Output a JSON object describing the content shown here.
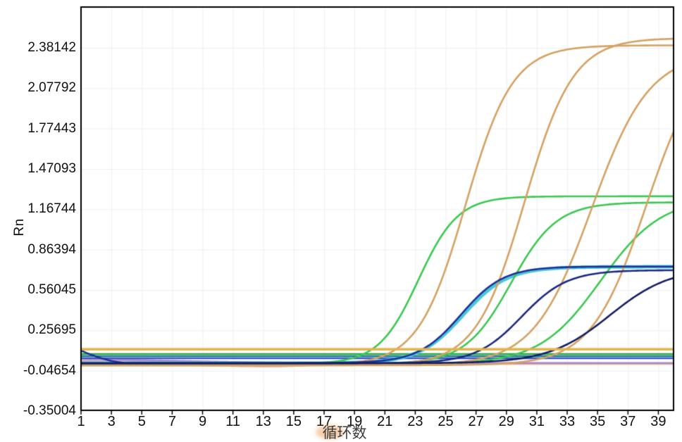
{
  "page": {
    "background_color": "#ffffff",
    "description_visible_text_only": "Real-time PCR amplification plot, Rn versus cycle number"
  },
  "chart_data": {
    "type": "line",
    "title": "",
    "xlabel": "循环数",
    "ylabel": "Rn",
    "x_ticks": [
      1,
      3,
      5,
      7,
      9,
      11,
      13,
      15,
      17,
      19,
      21,
      23,
      25,
      27,
      29,
      31,
      33,
      35,
      37,
      39
    ],
    "y_ticks": [
      2.38142,
      2.07792,
      1.77443,
      1.47093,
      1.16744,
      0.86394,
      0.56045,
      0.25695,
      -0.04654,
      -0.35004
    ],
    "x_range": [
      1,
      40
    ],
    "ylim": [
      -0.35004,
      2.69
    ],
    "grid": true,
    "legend_position": "none",
    "axis_color": "#000000",
    "grid_color": "#edeff4",
    "threshold_line": {
      "name": "threshold-line",
      "value": 0.115,
      "color": "#e2b44d",
      "width": 3.5
    },
    "series": [
      {
        "name": "negative-baseline-salmon",
        "color": "#eca47f",
        "width": 3,
        "model": "polyline",
        "points": [
          [
            1,
            0.018
          ],
          [
            4,
            0.012
          ],
          [
            7,
            0.002
          ],
          [
            9,
            -0.005
          ],
          [
            12,
            -0.011
          ],
          [
            14,
            -0.012
          ],
          [
            15.5,
            -0.007
          ],
          [
            17,
            0.002
          ],
          [
            19,
            0.007
          ],
          [
            40,
            0.007
          ]
        ]
      },
      {
        "name": "negative-baseline-pink",
        "color": "#d79fb6",
        "width": 2,
        "model": "polyline",
        "points": [
          [
            1,
            0.031
          ],
          [
            5,
            0.026
          ],
          [
            9,
            0.02
          ],
          [
            13,
            0.015
          ],
          [
            17,
            0.012
          ],
          [
            40,
            0.011
          ]
        ]
      },
      {
        "name": "negative-baseline-purple",
        "color": "#a48bd0",
        "width": 2.5,
        "model": "polyline",
        "points": [
          [
            1,
            0.045
          ],
          [
            3,
            0.04
          ],
          [
            6,
            0.032
          ],
          [
            9,
            0.024
          ],
          [
            12,
            0.018
          ],
          [
            15,
            0.014
          ],
          [
            20,
            0.012
          ],
          [
            40,
            0.012
          ]
        ]
      },
      {
        "name": "flat-line-blue",
        "color": "#3d57c8",
        "width": 2.5,
        "model": "flat",
        "value": 0.047
      },
      {
        "name": "flat-line-teal",
        "color": "#1f7d90",
        "width": 2.5,
        "model": "flat",
        "value": 0.063
      },
      {
        "name": "flat-line-green",
        "color": "#2fa848",
        "width": 2.5,
        "model": "flat",
        "value": 0.079
      },
      {
        "name": "amplification-teal",
        "color": "#49c8d8",
        "width": 5,
        "model": "sigmoid",
        "baseline": 0.01,
        "amplitude": 0.725,
        "midpoint": 26.15,
        "slope": 1.45,
        "end_value_cycle40": 0.73
      },
      {
        "name": "amplification-green-1",
        "color": "#3cc852",
        "width": 2.6,
        "model": "sigmoid",
        "baseline": 0.005,
        "amplitude": 1.26,
        "midpoint": 23.2,
        "slope": 1.3,
        "end_value_cycle40": 1.26
      },
      {
        "name": "amplification-green-2",
        "color": "#3cc852",
        "width": 2.6,
        "model": "sigmoid",
        "baseline": 0.005,
        "amplitude": 1.215,
        "midpoint": 29.3,
        "slope": 1.5,
        "end_value_cycle40": 1.22
      },
      {
        "name": "amplification-green-3",
        "color": "#3cc852",
        "width": 2.6,
        "model": "sigmoid",
        "baseline": 0.005,
        "amplitude": 1.25,
        "midpoint": 35.2,
        "slope": 2.0,
        "end_value_cycle40": 1.15
      },
      {
        "name": "amplification-orange-1",
        "color": "#d4a263",
        "width": 2.6,
        "model": "sigmoid",
        "baseline": -0.005,
        "amplitude": 2.405,
        "midpoint": 26.3,
        "slope": 1.55,
        "end_value_cycle40": 2.4
      },
      {
        "name": "amplification-orange-2",
        "color": "#d4a263",
        "width": 2.6,
        "model": "sigmoid",
        "baseline": -0.005,
        "amplitude": 2.46,
        "midpoint": 30.2,
        "slope": 1.6,
        "end_value_cycle40": 2.45
      },
      {
        "name": "amplification-orange-3",
        "color": "#d4a263",
        "width": 2.6,
        "model": "sigmoid",
        "baseline": -0.005,
        "amplitude": 2.35,
        "midpoint": 34.6,
        "slope": 1.9,
        "end_value_cycle40": 2.22
      },
      {
        "name": "amplification-orange-4",
        "color": "#d4a263",
        "width": 2.6,
        "model": "sigmoid",
        "baseline": -0.005,
        "amplitude": 2.4,
        "midpoint": 38.2,
        "slope": 1.8,
        "end_value_cycle40": 1.75
      },
      {
        "name": "amplification-navy-1",
        "color": "#20309a",
        "width": 2.6,
        "model": "sigmoid",
        "baseline": 0.012,
        "amplitude": 0.725,
        "midpoint": 26.0,
        "slope": 1.4,
        "start_spike": {
          "start_value": 0.105,
          "end_cycle": 4
        },
        "end_value_cycle40": 0.74
      },
      {
        "name": "amplification-navy-2",
        "color": "#1b2a84",
        "width": 2.6,
        "model": "sigmoid",
        "baseline": 0.01,
        "amplitude": 0.7,
        "midpoint": 30.0,
        "slope": 1.5,
        "end_value_cycle40": 0.71
      },
      {
        "name": "amplification-navy-3",
        "color": "#141f60",
        "width": 2.6,
        "model": "sigmoid",
        "baseline": 0.01,
        "amplitude": 0.72,
        "midpoint": 35.8,
        "slope": 2.0,
        "end_value_cycle40": 0.66
      }
    ]
  }
}
